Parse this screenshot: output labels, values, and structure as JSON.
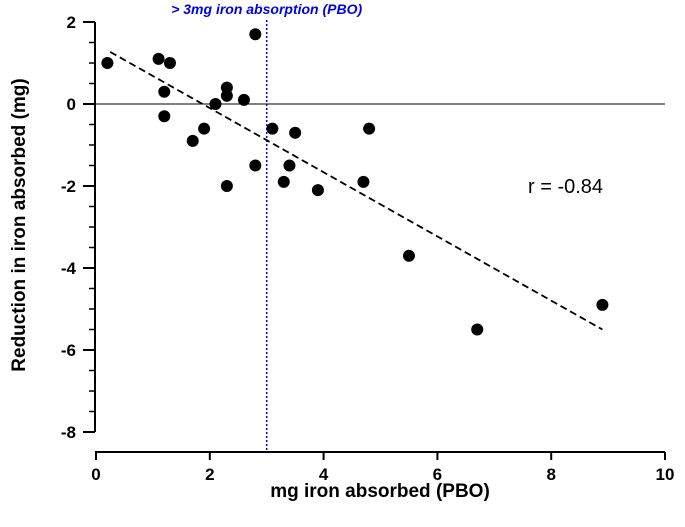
{
  "chart_data": {
    "type": "scatter",
    "title": "",
    "xlabel": "mg iron absorbed (PBO)",
    "ylabel": "Reduction in iron absorbed (mg)",
    "xlim": [
      0,
      10
    ],
    "ylim": [
      -8,
      2
    ],
    "xticks": [
      0,
      2,
      4,
      6,
      8,
      10
    ],
    "yticks": [
      -8,
      -6,
      -4,
      -2,
      0,
      2
    ],
    "xtick_labels": [
      "0",
      "2",
      "4",
      "6",
      "8",
      "10"
    ],
    "ytick_labels": [
      "-8",
      "-6",
      "-4",
      "-2",
      "0",
      "2"
    ],
    "grid": false,
    "points": [
      {
        "x": 0.2,
        "y": 1.0
      },
      {
        "x": 1.1,
        "y": 1.1
      },
      {
        "x": 1.3,
        "y": 1.0
      },
      {
        "x": 1.2,
        "y": 0.3
      },
      {
        "x": 1.2,
        "y": -0.3
      },
      {
        "x": 1.7,
        "y": -0.9
      },
      {
        "x": 1.9,
        "y": -0.6
      },
      {
        "x": 2.1,
        "y": 0.0
      },
      {
        "x": 2.3,
        "y": 0.4
      },
      {
        "x": 2.3,
        "y": 0.2
      },
      {
        "x": 2.3,
        "y": -2.0
      },
      {
        "x": 2.6,
        "y": 0.1
      },
      {
        "x": 2.8,
        "y": 1.7
      },
      {
        "x": 2.8,
        "y": -1.5
      },
      {
        "x": 3.1,
        "y": -0.6
      },
      {
        "x": 3.3,
        "y": -1.9
      },
      {
        "x": 3.4,
        "y": -1.5
      },
      {
        "x": 3.5,
        "y": -0.7
      },
      {
        "x": 3.9,
        "y": -2.1
      },
      {
        "x": 4.7,
        "y": -1.9
      },
      {
        "x": 4.8,
        "y": -0.6
      },
      {
        "x": 5.5,
        "y": -3.7
      },
      {
        "x": 6.7,
        "y": -5.5
      },
      {
        "x": 8.9,
        "y": -4.9
      }
    ],
    "regression_line": {
      "x": [
        0.25,
        8.9
      ],
      "y": [
        1.27,
        -5.5
      ],
      "style": "dashed"
    },
    "reference_hline": {
      "y": 0
    },
    "reference_vline": {
      "x": 3,
      "label": "> 3mg iron absorption (PBO)",
      "color": "#0000ee",
      "style": "dotted"
    },
    "annotation": "r = -0.84"
  }
}
